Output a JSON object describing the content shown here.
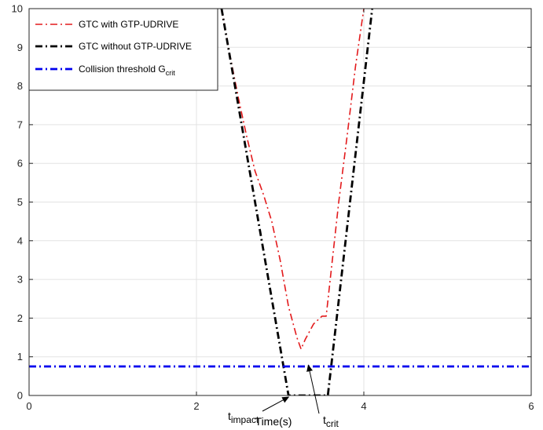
{
  "chart_data": {
    "type": "line",
    "title": "",
    "xlabel": "Time(s)",
    "ylabel": "",
    "xlim": [
      0,
      6
    ],
    "ylim": [
      0,
      10
    ],
    "xticks": [
      0,
      2,
      4,
      6
    ],
    "yticks": [
      0,
      1,
      2,
      3,
      4,
      5,
      6,
      7,
      8,
      9,
      10
    ],
    "grid": true,
    "legend_position": "top-left",
    "series": [
      {
        "name": "GTC with GTP-UDRIVE",
        "color": "#e31a1c",
        "dash": "dash-dot",
        "x": [
          2.3,
          2.4,
          2.5,
          2.6,
          2.7,
          2.8,
          2.9,
          3.0,
          3.05,
          3.1,
          3.2,
          3.25,
          3.3,
          3.4,
          3.5,
          3.55,
          3.7,
          3.8,
          3.9,
          4.0
        ],
        "y": [
          10.0,
          8.8,
          7.7,
          6.7,
          5.8,
          5.2,
          4.5,
          3.5,
          2.9,
          2.3,
          1.5,
          1.2,
          1.45,
          1.85,
          2.05,
          2.05,
          5.0,
          6.7,
          8.5,
          10.0
        ]
      },
      {
        "name": "GTC without GTP-UDRIVE",
        "color": "#000000",
        "dash": "dash-dot",
        "x": [
          2.3,
          3.1,
          3.12,
          3.55,
          3.57,
          4.1
        ],
        "y": [
          10.0,
          0.0,
          0.0,
          0.0,
          0.0,
          10.0
        ]
      },
      {
        "name": "Collision threshold G",
        "name_sub": "crit",
        "color": "#0000ee",
        "dash": "dash-dot",
        "x": [
          0,
          6
        ],
        "y": [
          0.75,
          0.75
        ]
      }
    ],
    "annotations": [
      {
        "label": "t",
        "label_sub": "impact",
        "target_x": 3.12,
        "target_y": 0.0
      },
      {
        "label": "t",
        "label_sub": "crit",
        "target_x": 3.28,
        "target_y": 1.15
      }
    ]
  }
}
